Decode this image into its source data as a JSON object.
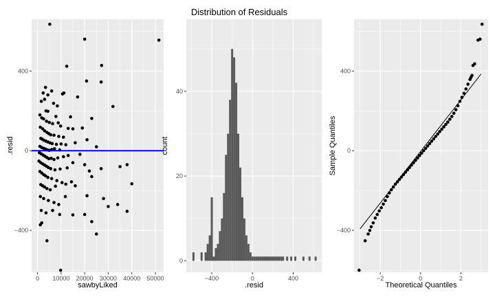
{
  "title": "Distribution of Residuals",
  "colors": {
    "panel": "#ebebeb",
    "grid": "#ffffff",
    "point": "#000000",
    "bar": "#595959",
    "hline": "#0000ff",
    "qqline": "#000000"
  },
  "chart_data": [
    {
      "type": "scatter",
      "xlabel": "sawbyLiked",
      "ylabel": ".resid",
      "xlim": [
        -2500,
        53500
      ],
      "ylim": [
        -610,
        660
      ],
      "xticks": [
        0,
        10000,
        20000,
        30000,
        40000,
        50000
      ],
      "yticks": [
        -400,
        0,
        400
      ],
      "grid": true,
      "hline": {
        "y": 0,
        "color": "#0000ff"
      },
      "points": [
        [
          5200,
          635
        ],
        [
          20000,
          560
        ],
        [
          51500,
          555
        ],
        [
          27200,
          428
        ],
        [
          12400,
          424
        ],
        [
          20800,
          350
        ],
        [
          27000,
          345
        ],
        [
          3400,
          318
        ],
        [
          6000,
          300
        ],
        [
          2400,
          290
        ],
        [
          4400,
          280
        ],
        [
          10600,
          285
        ],
        [
          11200,
          290
        ],
        [
          8400,
          225
        ],
        [
          1600,
          248
        ],
        [
          3000,
          258
        ],
        [
          6800,
          238
        ],
        [
          17000,
          270
        ],
        [
          3600,
          200
        ],
        [
          4400,
          198
        ],
        [
          7800,
          172
        ],
        [
          14000,
          170
        ],
        [
          1000,
          180
        ],
        [
          1800,
          165
        ],
        [
          2600,
          160
        ],
        [
          3800,
          148
        ],
        [
          5000,
          142
        ],
        [
          6400,
          136
        ],
        [
          8800,
          140
        ],
        [
          9800,
          124
        ],
        [
          13000,
          112
        ],
        [
          15000,
          110
        ],
        [
          19000,
          114
        ],
        [
          23000,
          162
        ],
        [
          32000,
          222
        ],
        [
          1200,
          118
        ],
        [
          2200,
          110
        ],
        [
          3000,
          100
        ],
        [
          4000,
          92
        ],
        [
          4800,
          86
        ],
        [
          5600,
          80
        ],
        [
          7000,
          78
        ],
        [
          9000,
          72
        ],
        [
          11000,
          68
        ],
        [
          1400,
          62
        ],
        [
          2000,
          58
        ],
        [
          2800,
          52
        ],
        [
          3600,
          48
        ],
        [
          4400,
          44
        ],
        [
          5200,
          40
        ],
        [
          6200,
          36
        ],
        [
          8000,
          32
        ],
        [
          10000,
          34
        ],
        [
          12000,
          30
        ],
        [
          16000,
          40
        ],
        [
          21000,
          55
        ],
        [
          25000,
          20
        ],
        [
          1000,
          22
        ],
        [
          1800,
          16
        ],
        [
          2600,
          12
        ],
        [
          3400,
          8
        ],
        [
          4200,
          4
        ],
        [
          5000,
          2
        ],
        [
          6000,
          6
        ],
        [
          7200,
          10
        ],
        [
          9400,
          4
        ],
        [
          800,
          -10
        ],
        [
          1600,
          -16
        ],
        [
          2400,
          -22
        ],
        [
          3200,
          -28
        ],
        [
          4000,
          -34
        ],
        [
          4800,
          -40
        ],
        [
          5800,
          -38
        ],
        [
          7000,
          -44
        ],
        [
          8600,
          -36
        ],
        [
          11000,
          -30
        ],
        [
          13000,
          -24
        ],
        [
          18000,
          -18
        ],
        [
          600,
          -52
        ],
        [
          1400,
          -60
        ],
        [
          2200,
          -66
        ],
        [
          3000,
          -72
        ],
        [
          3800,
          -78
        ],
        [
          4600,
          -84
        ],
        [
          5600,
          -90
        ],
        [
          7400,
          -96
        ],
        [
          9600,
          -92
        ],
        [
          12600,
          -86
        ],
        [
          15000,
          -60
        ],
        [
          20000,
          -70
        ],
        [
          1000,
          -104
        ],
        [
          1800,
          -112
        ],
        [
          2600,
          -120
        ],
        [
          3400,
          -126
        ],
        [
          4400,
          -134
        ],
        [
          6000,
          -140
        ],
        [
          8200,
          -150
        ],
        [
          10400,
          -160
        ],
        [
          14400,
          -156
        ],
        [
          22000,
          -102
        ],
        [
          35000,
          -80
        ],
        [
          38000,
          -70
        ],
        [
          1400,
          -170
        ],
        [
          2200,
          -176
        ],
        [
          3000,
          -182
        ],
        [
          4000,
          -190
        ],
        [
          5400,
          -196
        ],
        [
          7600,
          -178
        ],
        [
          12000,
          -168
        ],
        [
          16000,
          -176
        ],
        [
          27000,
          -90
        ],
        [
          40000,
          -166
        ],
        [
          1200,
          -230
        ],
        [
          2600,
          -240
        ],
        [
          4600,
          -250
        ],
        [
          7000,
          -260
        ],
        [
          9000,
          -270
        ],
        [
          11800,
          -230
        ],
        [
          21000,
          -226
        ],
        [
          23000,
          -130
        ],
        [
          28000,
          -240
        ],
        [
          30000,
          -280
        ],
        [
          1600,
          -300
        ],
        [
          3600,
          -312
        ],
        [
          6400,
          -300
        ],
        [
          9400,
          -320
        ],
        [
          15000,
          -322
        ],
        [
          20000,
          -320
        ],
        [
          38000,
          -304
        ],
        [
          34000,
          -270
        ],
        [
          1800,
          -362
        ],
        [
          1200,
          -372
        ],
        [
          23000,
          -356
        ],
        [
          25000,
          -418
        ],
        [
          4000,
          -452
        ],
        [
          9800,
          -600
        ]
      ]
    },
    {
      "type": "bar",
      "xlabel": ".resid",
      "ylabel": "count",
      "xlim": [
        -650,
        680
      ],
      "ylim": [
        -2.7,
        57
      ],
      "xticks": [
        -400,
        0,
        400
      ],
      "yticks": [
        0,
        20,
        40
      ],
      "grid": true,
      "bin_width": 20,
      "bin_centers": [
        -580,
        -500,
        -460,
        -440,
        -420,
        -400,
        -380,
        -360,
        -340,
        -320,
        -300,
        -280,
        -260,
        -240,
        -220,
        -200,
        -180,
        -160,
        -140,
        -120,
        -100,
        -80,
        -60,
        -40,
        -20,
        0,
        20,
        40,
        60,
        80,
        100,
        120,
        140,
        160,
        180,
        200,
        220,
        240,
        260,
        280,
        300,
        340,
        380,
        420,
        500,
        560,
        620
      ],
      "counts": [
        2,
        2,
        2,
        4,
        6,
        15,
        1,
        3,
        4,
        7,
        10,
        16,
        25,
        30,
        38,
        50,
        48,
        42,
        30,
        22,
        15,
        10,
        6,
        4,
        2,
        1,
        1,
        1,
        1,
        1,
        1,
        1,
        1,
        1,
        1,
        1,
        1,
        1,
        1,
        1,
        1,
        1,
        1,
        1,
        1,
        1,
        1
      ]
    },
    {
      "type": "scatter",
      "xlabel": "Theoretical Quantiles",
      "ylabel": "Sample Quantiles",
      "xlim": [
        -3.3,
        3.35
      ],
      "ylim": [
        -610,
        660
      ],
      "xticks": [
        -2,
        0,
        2
      ],
      "yticks": [
        -400,
        0,
        400
      ],
      "grid": true,
      "reference_line": [
        [
          -3.0,
          -392
        ],
        [
          3.0,
          385
        ]
      ],
      "points": [
        [
          -3.05,
          -600
        ],
        [
          -2.75,
          -452
        ],
        [
          -2.6,
          -418
        ],
        [
          -2.52,
          -400
        ],
        [
          -2.45,
          -382
        ],
        [
          -2.35,
          -362
        ],
        [
          -2.25,
          -338
        ],
        [
          -2.15,
          -320
        ],
        [
          -2.05,
          -302
        ],
        [
          -1.95,
          -286
        ],
        [
          -1.85,
          -268
        ],
        [
          -1.75,
          -250
        ],
        [
          -1.65,
          -230
        ],
        [
          -1.55,
          -212
        ],
        [
          -1.45,
          -196
        ],
        [
          -1.35,
          -182
        ],
        [
          -1.25,
          -168
        ],
        [
          -1.15,
          -156
        ],
        [
          -1.05,
          -144
        ],
        [
          -0.95,
          -132
        ],
        [
          -0.85,
          -120
        ],
        [
          -0.75,
          -108
        ],
        [
          -0.65,
          -96
        ],
        [
          -0.55,
          -84
        ],
        [
          -0.45,
          -72
        ],
        [
          -0.35,
          -60
        ],
        [
          -0.25,
          -48
        ],
        [
          -0.15,
          -36
        ],
        [
          -0.05,
          -24
        ],
        [
          0.05,
          -12
        ],
        [
          0.15,
          0
        ],
        [
          0.25,
          12
        ],
        [
          0.35,
          24
        ],
        [
          0.45,
          36
        ],
        [
          0.55,
          48
        ],
        [
          0.65,
          60
        ],
        [
          0.75,
          72
        ],
        [
          0.85,
          84
        ],
        [
          0.95,
          96
        ],
        [
          1.05,
          108
        ],
        [
          1.15,
          120
        ],
        [
          1.25,
          132
        ],
        [
          1.35,
          144
        ],
        [
          1.45,
          158
        ],
        [
          1.55,
          172
        ],
        [
          1.65,
          188
        ],
        [
          1.75,
          206
        ],
        [
          1.85,
          226
        ],
        [
          1.95,
          248
        ],
        [
          2.05,
          268
        ],
        [
          2.15,
          288
        ],
        [
          2.25,
          310
        ],
        [
          2.35,
          334
        ],
        [
          2.45,
          358
        ],
        [
          2.5,
          368
        ],
        [
          2.55,
          378
        ],
        [
          2.6,
          428
        ],
        [
          2.68,
          436
        ],
        [
          2.85,
          555
        ],
        [
          2.95,
          560
        ],
        [
          3.05,
          635
        ]
      ]
    }
  ]
}
